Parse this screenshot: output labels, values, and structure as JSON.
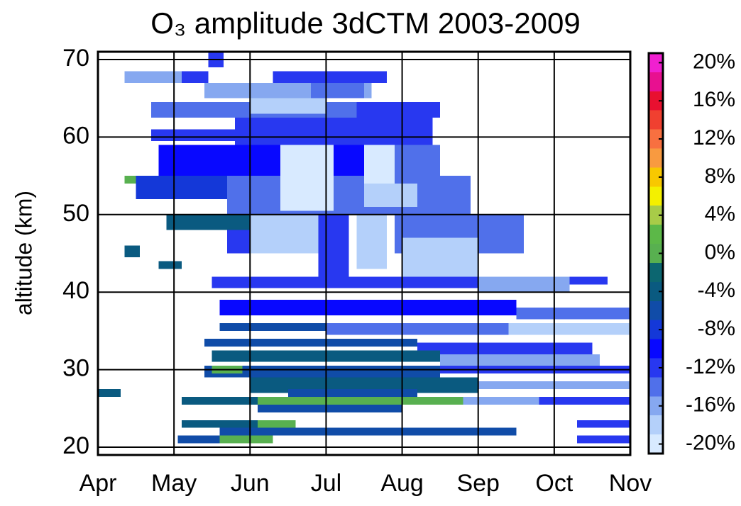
{
  "chart_data": {
    "type": "heatmap",
    "title": "O₃ amplitude 3dCTM 2003-2009",
    "y_label": "altitude (km)",
    "xlim": [
      0,
      7
    ],
    "xticks": [
      {
        "value": 0,
        "label": "Apr"
      },
      {
        "value": 1,
        "label": "May"
      },
      {
        "value": 2,
        "label": "Jun"
      },
      {
        "value": 3,
        "label": "Jul"
      },
      {
        "value": 4,
        "label": "Aug"
      },
      {
        "value": 5,
        "label": "Sep"
      },
      {
        "value": 6,
        "label": "Oct"
      },
      {
        "value": 7,
        "label": "Nov"
      }
    ],
    "ylim": [
      19,
      71
    ],
    "yticks": [
      20,
      30,
      40,
      50,
      60,
      70
    ],
    "grid": true,
    "clim": [
      -21,
      21
    ],
    "levels": [
      -21,
      -19,
      -17,
      -15,
      -13,
      -11,
      -9,
      -7,
      -5,
      -3,
      -1,
      1,
      3,
      5,
      7,
      9,
      11,
      13,
      15,
      17,
      19,
      21
    ],
    "colors": [
      "#d8eaff",
      "#b4d0fa",
      "#86a8f0",
      "#5070ea",
      "#2838f0",
      "#0808ff",
      "#1438d8",
      "#104ca8",
      "#0a5a80",
      "#0c6670",
      "#58b050",
      "#5cb848",
      "#a8cc48",
      "#f4f000",
      "#f8c800",
      "#f89a40",
      "#f87040",
      "#f04030",
      "#e81030",
      "#e81090",
      "#f020d0"
    ],
    "cticks": [
      {
        "value": -20,
        "label": "-20%"
      },
      {
        "value": -16,
        "label": "-16%"
      },
      {
        "value": -12,
        "label": "-12%"
      },
      {
        "value": -8,
        "label": "-8%"
      },
      {
        "value": -4,
        "label": "-4%"
      },
      {
        "value": 0,
        "label": "0%"
      },
      {
        "value": 4,
        "label": "4%"
      },
      {
        "value": 8,
        "label": "8%"
      },
      {
        "value": 12,
        "label": "12%"
      },
      {
        "value": 16,
        "label": "16%"
      },
      {
        "value": 20,
        "label": "20%"
      }
    ],
    "cells": [
      {
        "x": [
          1.45,
          1.65
        ],
        "y": [
          69,
          71
        ],
        "value": -13
      },
      {
        "x": [
          0.35,
          1.15
        ],
        "y": [
          67,
          68.5
        ],
        "value": -16
      },
      {
        "x": [
          1.1,
          1.45
        ],
        "y": [
          67,
          68.5
        ],
        "value": -13
      },
      {
        "x": [
          2.3,
          3.8
        ],
        "y": [
          67,
          68.5
        ],
        "value": -13
      },
      {
        "x": [
          1.4,
          3.6
        ],
        "y": [
          65,
          67
        ],
        "value": -17
      },
      {
        "x": [
          2.8,
          3.5
        ],
        "y": [
          65,
          67
        ],
        "value": -15
      },
      {
        "x": [
          0.7,
          3.4
        ],
        "y": [
          62.5,
          64.5
        ],
        "value": -15
      },
      {
        "x": [
          3.4,
          4.5
        ],
        "y": [
          62.5,
          64.5
        ],
        "value": -13
      },
      {
        "x": [
          2.0,
          3.0
        ],
        "y": [
          63,
          65
        ],
        "value": -19
      },
      {
        "x": [
          1.8,
          4.4
        ],
        "y": [
          59,
          62.5
        ],
        "value": -12
      },
      {
        "x": [
          0.7,
          1.8
        ],
        "y": [
          59.5,
          61
        ],
        "value": -13
      },
      {
        "x": [
          0.8,
          3.5
        ],
        "y": [
          55,
          59
        ],
        "value": -11
      },
      {
        "x": [
          3.5,
          4.5
        ],
        "y": [
          55,
          59
        ],
        "value": -14
      },
      {
        "x": [
          0.5,
          1.7
        ],
        "y": [
          52,
          55
        ],
        "value": -8
      },
      {
        "x": [
          1.7,
          4.9
        ],
        "y": [
          50,
          55
        ],
        "value": -14
      },
      {
        "x": [
          2.4,
          3.1
        ],
        "y": [
          50.5,
          59
        ],
        "value": -20
      },
      {
        "x": [
          3.5,
          3.9
        ],
        "y": [
          51,
          59
        ],
        "value": -20
      },
      {
        "x": [
          3.5,
          4.2
        ],
        "y": [
          51,
          54
        ],
        "value": -19
      },
      {
        "x": [
          0.9,
          2.1
        ],
        "y": [
          48,
          50
        ],
        "value": -5
      },
      {
        "x": [
          1.7,
          2.9
        ],
        "y": [
          45,
          48
        ],
        "value": -12
      },
      {
        "x": [
          3.9,
          5.6
        ],
        "y": [
          45,
          50
        ],
        "value": -14
      },
      {
        "x": [
          2.0,
          2.9
        ],
        "y": [
          45,
          50
        ],
        "value": -19
      },
      {
        "x": [
          2.9,
          3.3
        ],
        "y": [
          41,
          50
        ],
        "value": -12
      },
      {
        "x": [
          3.4,
          3.8
        ],
        "y": [
          43,
          50
        ],
        "value": -19
      },
      {
        "x": [
          4.0,
          5.0
        ],
        "y": [
          42,
          47
        ],
        "value": -19
      },
      {
        "x": [
          0.35,
          0.5
        ],
        "y": [
          54,
          55
        ],
        "value": 0
      },
      {
        "x": [
          0.35,
          0.55
        ],
        "y": [
          44.5,
          46
        ],
        "value": -5
      },
      {
        "x": [
          0.8,
          1.1
        ],
        "y": [
          43,
          44
        ],
        "value": -5
      },
      {
        "x": [
          1.5,
          5.0
        ],
        "y": [
          40.5,
          42
        ],
        "value": -12
      },
      {
        "x": [
          5.0,
          6.2
        ],
        "y": [
          40,
          42
        ],
        "value": -17
      },
      {
        "x": [
          6.2,
          6.7
        ],
        "y": [
          41,
          42
        ],
        "value": -12
      },
      {
        "x": [
          1.6,
          5.5
        ],
        "y": [
          37,
          39
        ],
        "value": -11
      },
      {
        "x": [
          5.5,
          7.0
        ],
        "y": [
          36.5,
          38
        ],
        "value": -14
      },
      {
        "x": [
          1.6,
          3.0
        ],
        "y": [
          35,
          36
        ],
        "value": -6
      },
      {
        "x": [
          3.0,
          5.4
        ],
        "y": [
          34.5,
          36
        ],
        "value": -14
      },
      {
        "x": [
          5.4,
          7.0
        ],
        "y": [
          34.5,
          36
        ],
        "value": -19
      },
      {
        "x": [
          1.4,
          4.2
        ],
        "y": [
          33,
          34
        ],
        "value": -6
      },
      {
        "x": [
          4.2,
          6.5
        ],
        "y": [
          32,
          33.5
        ],
        "value": -12
      },
      {
        "x": [
          1.5,
          4.5
        ],
        "y": [
          31,
          32.5
        ],
        "value": -5
      },
      {
        "x": [
          4.5,
          6.6
        ],
        "y": [
          30.5,
          32
        ],
        "value": -17
      },
      {
        "x": [
          1.4,
          4.5
        ],
        "y": [
          29,
          30.5
        ],
        "value": -6
      },
      {
        "x": [
          1.5,
          1.9
        ],
        "y": [
          29.5,
          30.5
        ],
        "value": 0
      },
      {
        "x": [
          4.5,
          7.0
        ],
        "y": [
          29.5,
          30.5
        ],
        "value": -12
      },
      {
        "x": [
          2.0,
          5.0
        ],
        "y": [
          27,
          29
        ],
        "value": -5
      },
      {
        "x": [
          5.0,
          7.0
        ],
        "y": [
          27.5,
          28.5
        ],
        "value": -16
      },
      {
        "x": [
          0.0,
          0.3
        ],
        "y": [
          26.5,
          27.5
        ],
        "value": -5
      },
      {
        "x": [
          2.5,
          4.2
        ],
        "y": [
          26.5,
          27.5
        ],
        "value": -6
      },
      {
        "x": [
          1.1,
          2.1
        ],
        "y": [
          25.5,
          26.5
        ],
        "value": -5
      },
      {
        "x": [
          2.1,
          4.8
        ],
        "y": [
          25.5,
          26.5
        ],
        "value": 0
      },
      {
        "x": [
          4.8,
          5.8
        ],
        "y": [
          25.5,
          26.5
        ],
        "value": -16
      },
      {
        "x": [
          5.8,
          7.0
        ],
        "y": [
          25.5,
          26.5
        ],
        "value": -12
      },
      {
        "x": [
          2.1,
          4.0
        ],
        "y": [
          24.5,
          25.5
        ],
        "value": -6
      },
      {
        "x": [
          1.1,
          2.1
        ],
        "y": [
          22.5,
          23.5
        ],
        "value": -5
      },
      {
        "x": [
          2.1,
          2.6
        ],
        "y": [
          22.5,
          23.5
        ],
        "value": 0
      },
      {
        "x": [
          6.3,
          7.0
        ],
        "y": [
          22.5,
          23.5
        ],
        "value": -12
      },
      {
        "x": [
          1.6,
          5.5
        ],
        "y": [
          21.5,
          22.5
        ],
        "value": -6
      },
      {
        "x": [
          1.05,
          1.6
        ],
        "y": [
          20.5,
          21.5
        ],
        "value": -6
      },
      {
        "x": [
          1.6,
          2.3
        ],
        "y": [
          20.5,
          21.5
        ],
        "value": 0
      },
      {
        "x": [
          6.3,
          7.0
        ],
        "y": [
          20.5,
          21.5
        ],
        "value": -12
      }
    ]
  }
}
